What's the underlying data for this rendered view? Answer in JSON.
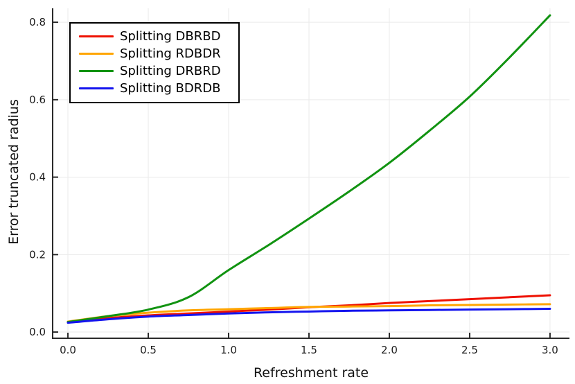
{
  "chart_data": {
    "type": "line",
    "title": "",
    "xlabel": "Refreshment rate",
    "ylabel": "Error truncated radius",
    "x": [
      0,
      0.25,
      0.5,
      0.75,
      1.0,
      1.25,
      1.5,
      1.75,
      2.0,
      2.25,
      2.5,
      2.75,
      3.0
    ],
    "series": [
      {
        "name": "Splitting DBRBD",
        "color": "#ee1100",
        "values": [
          0.026,
          0.036,
          0.043,
          0.048,
          0.053,
          0.058,
          0.064,
          0.069,
          0.075,
          0.08,
          0.085,
          0.09,
          0.095
        ]
      },
      {
        "name": "Splitting RDBDR",
        "color": "#ffa500",
        "values": [
          0.027,
          0.041,
          0.05,
          0.056,
          0.059,
          0.062,
          0.065,
          0.066,
          0.067,
          0.069,
          0.07,
          0.071,
          0.072
        ]
      },
      {
        "name": "Splitting DRBRD",
        "color": "#119311",
        "values": [
          0.026,
          0.041,
          0.058,
          0.09,
          0.16,
          0.225,
          0.293,
          0.363,
          0.437,
          0.52,
          0.608,
          0.71,
          0.818
        ]
      },
      {
        "name": "Splitting BDRDB",
        "color": "#1414ee",
        "values": [
          0.024,
          0.033,
          0.04,
          0.044,
          0.048,
          0.051,
          0.053,
          0.055,
          0.056,
          0.057,
          0.058,
          0.059,
          0.06
        ]
      }
    ],
    "xticks": [
      0.0,
      0.5,
      1.0,
      1.5,
      2.0,
      2.5,
      3.0
    ],
    "xtick_labels": [
      "0.0",
      "0.5",
      "1.0",
      "1.5",
      "2.0",
      "2.5",
      "3.0"
    ],
    "yticks": [
      0.0,
      0.2,
      0.4,
      0.6,
      0.8
    ],
    "ytick_labels": [
      "0.0",
      "0.2",
      "0.4",
      "0.6",
      "0.8"
    ],
    "xlim": [
      -0.095,
      3.121
    ],
    "ylim": [
      -0.016,
      0.836
    ],
    "grid": true,
    "legend_position": "top-left",
    "line_width": 3,
    "colors": {
      "background": "#ffffff",
      "grid": "#eaeaea",
      "spine": "#2a2a2a",
      "tick_label": "#1c1c1c",
      "legend_border": "#000000"
    }
  }
}
